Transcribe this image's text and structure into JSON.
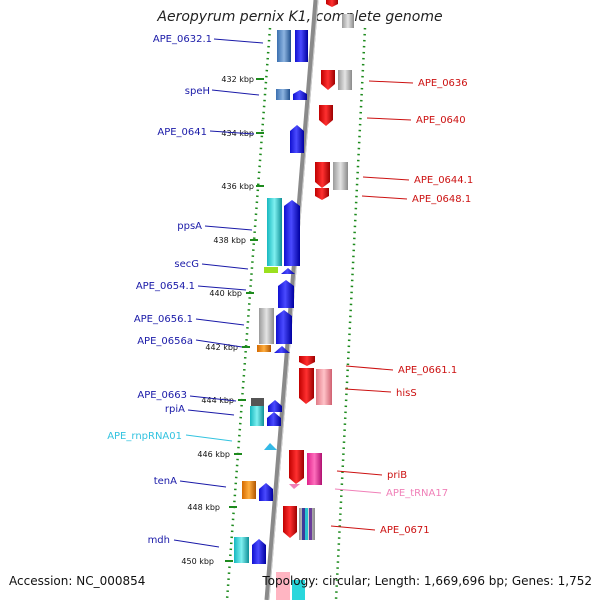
{
  "title": "Aeropyrum pernix K1, complete genome",
  "footer": {
    "accession": "Accession: NC_000854",
    "topology": "Topology: circular; Length: 1,669,696 bp; Genes: 1,752"
  },
  "colors": {
    "forward_label": "#1a1aa8",
    "reverse_label": "#cc1111",
    "rna_label": "#33c3e0",
    "trna_label": "#f080b8",
    "backbone": "#8a8a8a",
    "ruler_dots": "#1d8a1d"
  },
  "ticks": [
    "432 kbp",
    "434 kbp",
    "436 kbp",
    "438 kbp",
    "440 kbp",
    "442 kbp",
    "444 kbp",
    "446 kbp",
    "448 kbp",
    "450 kbp"
  ],
  "forward_labels": [
    "APE_0632.1",
    "speH",
    "APE_0641",
    "ppsA",
    "secG",
    "APE_0654.1",
    "APE_0656.1",
    "APE_0656a",
    "APE_0663",
    "rpiA",
    "APE_rnpRNA01",
    "tenA",
    "mdh"
  ],
  "reverse_labels": [
    "APE_0636",
    "APE_0640",
    "APE_0644.1",
    "APE_0648.1",
    "APE_0661.1",
    "hisS",
    "priB",
    "APE_tRNA17",
    "APE_0671"
  ]
}
